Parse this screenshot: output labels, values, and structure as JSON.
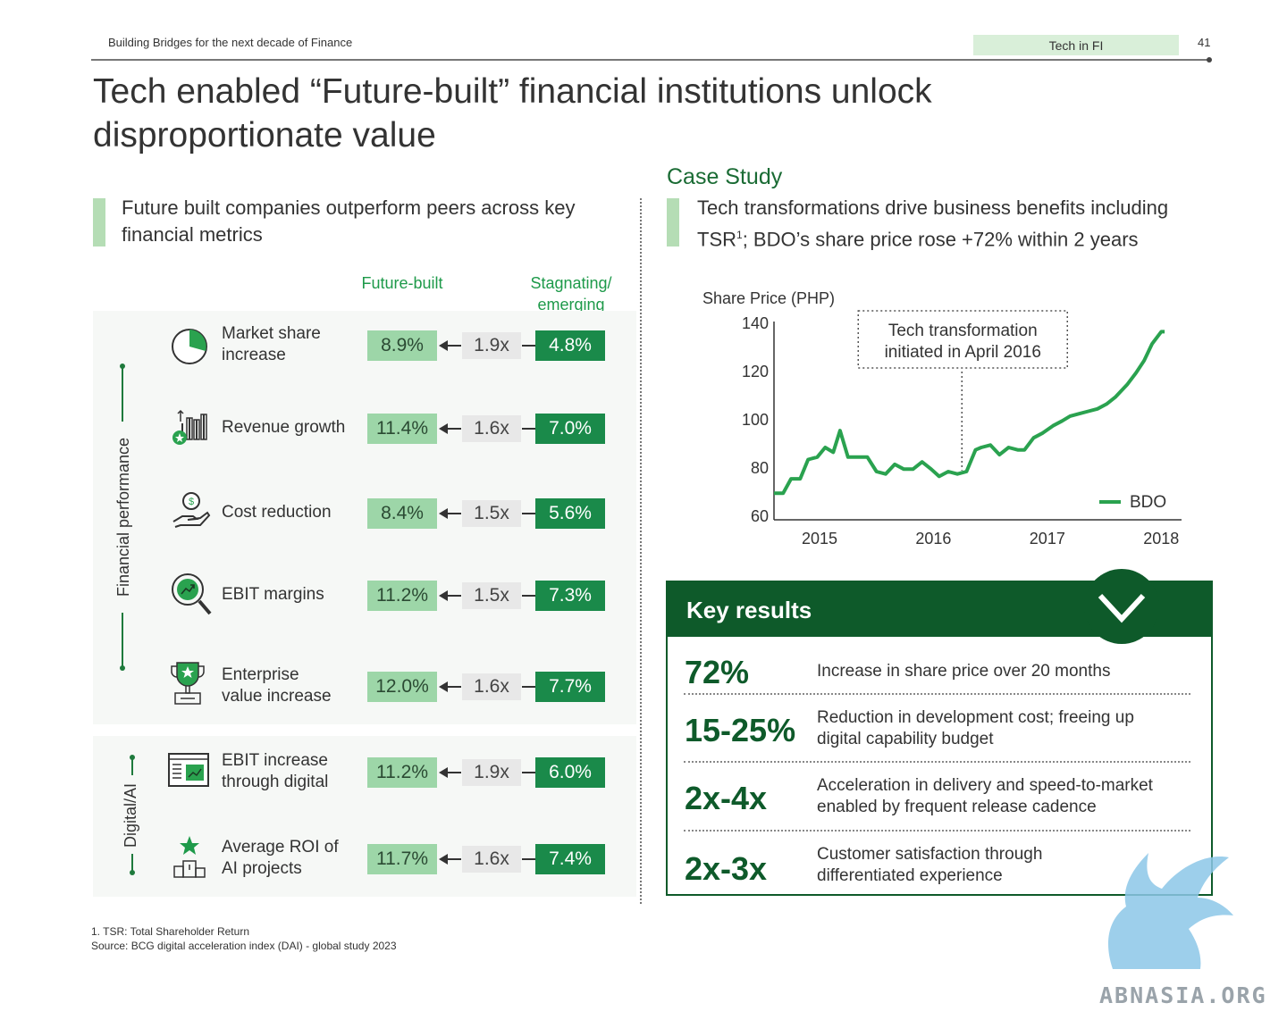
{
  "header": {
    "left_text": "Building Bridges for the next decade of Finance",
    "tag": "Tech in FI",
    "page_number": "41"
  },
  "title": {
    "line1": "Tech enabled “Future-built” financial institutions unlock",
    "line2": "disproportionate value"
  },
  "left_section": {
    "subhead_line1": "Future built companies outperform peers across key",
    "subhead_line2": "financial metrics",
    "col_future": "Future-built",
    "col_stag_line1": "Stagnating/",
    "col_stag_line2": "emerging",
    "group_financial": "Financial performance",
    "group_digital": "Digital/AI",
    "metrics": [
      {
        "icon": "pie-chart-icon",
        "label1": "Market share",
        "label2": "increase",
        "future": "8.9%",
        "mult": "1.9x",
        "stag": "4.8%"
      },
      {
        "icon": "bar-chart-icon",
        "label1": "Revenue growth",
        "label2": "",
        "future": "11.4%",
        "mult": "1.6x",
        "stag": "7.0%"
      },
      {
        "icon": "hand-coin-icon",
        "label1": "Cost reduction",
        "label2": "",
        "future": "8.4%",
        "mult": "1.5x",
        "stag": "5.6%"
      },
      {
        "icon": "magnifier-trend-icon",
        "label1": "EBIT margins",
        "label2": "",
        "future": "11.2%",
        "mult": "1.5x",
        "stag": "7.3%"
      },
      {
        "icon": "trophy-icon",
        "label1": "Enterprise",
        "label2": "value increase",
        "future": "12.0%",
        "mult": "1.6x",
        "stag": "7.7%"
      },
      {
        "icon": "dashboard-icon",
        "label1": "EBIT increase",
        "label2": "through digital",
        "future": "11.2%",
        "mult": "1.9x",
        "stag": "6.0%"
      },
      {
        "icon": "podium-star-icon",
        "label1": "Average ROI of",
        "label2": "AI projects",
        "future": "11.7%",
        "mult": "1.6x",
        "stag": "7.4%"
      }
    ],
    "footnote1": "1. TSR: Total Shareholder Return",
    "footnote2": "Source: BCG digital acceleration index (DAI) - global study 2023"
  },
  "right_section": {
    "case_title": "Case Study",
    "subhead_line1": "Tech transformations drive business benefits including",
    "subhead_line2_a": "TSR",
    "subhead_sup": "1",
    "subhead_line2_b": "; BDO’s share price rose +72% within 2 years",
    "annotation_line1": "Tech transformation",
    "annotation_line2": "initiated in April 2016"
  },
  "chart_data": {
    "type": "line",
    "ylabel": "Share Price (PHP)",
    "ylim": [
      60,
      140
    ],
    "yticks": [
      "140",
      "120",
      "100",
      "80",
      "60"
    ],
    "xticks": [
      "2015",
      "2016",
      "2017",
      "2018"
    ],
    "xlim": [
      2014.6,
      2018.1
    ],
    "line_color": "#2aa24f",
    "series": [
      {
        "name": "BDO",
        "x": [
          2014.6,
          2014.68,
          2014.75,
          2014.83,
          2014.9,
          2014.98,
          2015.05,
          2015.12,
          2015.18,
          2015.25,
          2015.33,
          2015.42,
          2015.5,
          2015.58,
          2015.66,
          2015.74,
          2015.82,
          2015.9,
          2015.98,
          2016.05,
          2016.13,
          2016.21,
          2016.29,
          2016.37,
          2016.42,
          2016.5,
          2016.58,
          2016.66,
          2016.74,
          2016.8,
          2016.88,
          2016.96,
          2017.05,
          2017.13,
          2017.2,
          2017.28,
          2017.36,
          2017.44,
          2017.52,
          2017.6,
          2017.7,
          2017.78,
          2017.85,
          2017.92,
          2018.0,
          2018.03
        ],
        "y": [
          71,
          71,
          77,
          77,
          85,
          86,
          90,
          88,
          97,
          86,
          86,
          86,
          80,
          79,
          83,
          81,
          81,
          84,
          81,
          78,
          80,
          79,
          80,
          89,
          90,
          91,
          87,
          90,
          89,
          89,
          94,
          96,
          99,
          101,
          103,
          104,
          105,
          106,
          108,
          111,
          116,
          121,
          126,
          133,
          138,
          138
        ]
      }
    ],
    "legend": "bottom-right",
    "annotation_x": 2016.25
  },
  "key_results": {
    "title": "Key results",
    "items": [
      {
        "value": "72%",
        "desc1": "Increase in share price over 20 months",
        "desc2": ""
      },
      {
        "value": "15-25%",
        "desc1": "Reduction in development cost; freeing up",
        "desc2": "digital capability budget"
      },
      {
        "value": "2x-4x",
        "desc1": "Acceleration in delivery and speed-to-market",
        "desc2": "enabled by frequent release cadence"
      },
      {
        "value": "2x-3x",
        "desc1": "Customer satisfaction through",
        "desc2": "differentiated experience"
      }
    ]
  },
  "watermark": {
    "text": "ABNASIA.ORG"
  },
  "colors": {
    "dark_green": "#0e5a2a",
    "mid_green": "#1a8a4a",
    "light_green": "#9dd6a8",
    "accent": "#1e9a4a"
  }
}
